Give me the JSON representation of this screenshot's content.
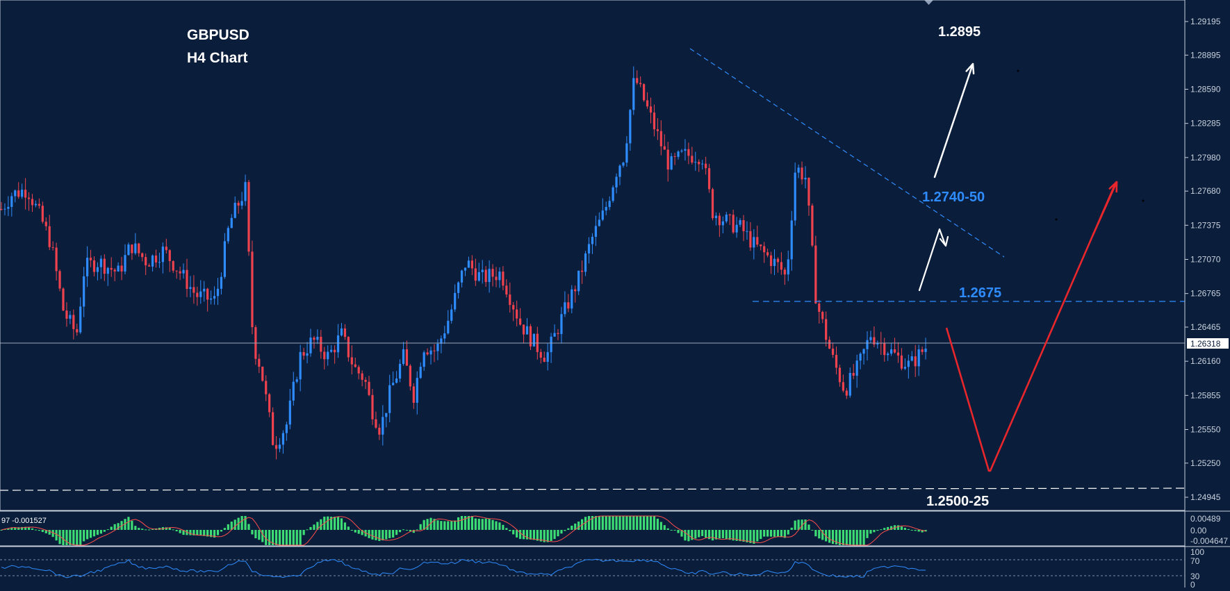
{
  "header": {
    "symbol": "GBPUSD",
    "timeframe": "H4 Chart"
  },
  "levels": {
    "target_high": "1.2895",
    "resistance_zone": "1.2740-50",
    "resistance": "1.2675",
    "support_zone": "1.2500-25",
    "current_price": "1.26318"
  },
  "colors": {
    "background": "#0a1e3b",
    "bull_candle": "#2f8cff",
    "bear_candle": "#f0424e",
    "level_blue": "#2f8cff",
    "macd_hist": "#3ddc74",
    "signal_line": "#ff4d4d",
    "arrow_white": "#ffffff",
    "arrow_red": "#e8262c"
  },
  "price_axis": {
    "ticks": [
      "1.29195",
      "1.28895",
      "1.28590",
      "1.28285",
      "1.27980",
      "1.27680",
      "1.27375",
      "1.27070",
      "1.26765",
      "1.26465",
      "1.26160",
      "1.25855",
      "1.25550",
      "1.25250",
      "1.24945"
    ]
  },
  "macd": {
    "label": "97 -0.001527",
    "ticks": [
      "0.00489",
      "0.00",
      "-0.004647"
    ]
  },
  "rsi": {
    "ticks": [
      "100",
      "70",
      "30",
      "0"
    ]
  },
  "chart_data": {
    "type": "candlestick",
    "title": "GBPUSD H4 Chart",
    "ylim": [
      1.2486,
      1.2935
    ],
    "bars": 270,
    "close_path": [
      [
        0,
        1.2752
      ],
      [
        8,
        1.2765
      ],
      [
        20,
        1.277
      ],
      [
        30,
        1.2745
      ],
      [
        38,
        1.2722
      ],
      [
        48,
        1.266
      ],
      [
        58,
        1.264
      ],
      [
        64,
        1.27
      ],
      [
        75,
        1.2705
      ],
      [
        90,
        1.2695
      ],
      [
        100,
        1.272
      ],
      [
        112,
        1.2705
      ],
      [
        125,
        1.2715
      ],
      [
        138,
        1.2695
      ],
      [
        150,
        1.2675
      ],
      [
        165,
        1.267
      ],
      [
        176,
        1.274
      ],
      [
        188,
        1.277
      ],
      [
        194,
        1.2632
      ],
      [
        200,
        1.261
      ],
      [
        210,
        1.254
      ],
      [
        220,
        1.256
      ],
      [
        230,
        1.262
      ],
      [
        240,
        1.2635
      ],
      [
        252,
        1.262
      ],
      [
        262,
        1.264
      ],
      [
        272,
        1.261
      ],
      [
        280,
        1.26
      ],
      [
        285,
        1.2575
      ],
      [
        292,
        1.2555
      ],
      [
        300,
        1.259
      ],
      [
        310,
        1.262
      ],
      [
        318,
        1.2585
      ],
      [
        325,
        1.263
      ],
      [
        335,
        1.2625
      ],
      [
        345,
        1.2655
      ],
      [
        358,
        1.2705
      ],
      [
        370,
        1.269
      ],
      [
        385,
        1.2695
      ],
      [
        400,
        1.265
      ],
      [
        412,
        1.263
      ],
      [
        420,
        1.262
      ],
      [
        432,
        1.2655
      ],
      [
        445,
        1.269
      ],
      [
        455,
        1.2725
      ],
      [
        465,
        1.275
      ],
      [
        475,
        1.279
      ],
      [
        480,
        1.28
      ],
      [
        488,
        1.287
      ],
      [
        495,
        1.285
      ],
      [
        505,
        1.282
      ],
      [
        515,
        1.279
      ],
      [
        525,
        1.28
      ],
      [
        540,
        1.28
      ],
      [
        548,
        1.275
      ],
      [
        560,
        1.274
      ],
      [
        570,
        1.2735
      ],
      [
        580,
        1.272
      ],
      [
        590,
        1.271
      ],
      [
        600,
        1.27
      ],
      [
        605,
        1.269
      ],
      [
        612,
        1.279
      ],
      [
        620,
        1.278
      ],
      [
        628,
        1.267
      ],
      [
        640,
        1.262
      ],
      [
        650,
        1.259
      ],
      [
        660,
        1.261
      ],
      [
        670,
        1.264
      ],
      [
        680,
        1.263
      ],
      [
        690,
        1.262
      ],
      [
        700,
        1.2612
      ],
      [
        715,
        1.2632
      ]
    ],
    "annotations": [
      {
        "text": "1.2895",
        "kind": "target"
      },
      {
        "text": "1.2740-50",
        "kind": "trendline-resistance"
      },
      {
        "text": "1.2675",
        "kind": "horizontal-resistance"
      },
      {
        "text": "1.2500-25",
        "kind": "support"
      }
    ],
    "indicators": [
      "MACD",
      "RSI"
    ],
    "grid": false
  }
}
